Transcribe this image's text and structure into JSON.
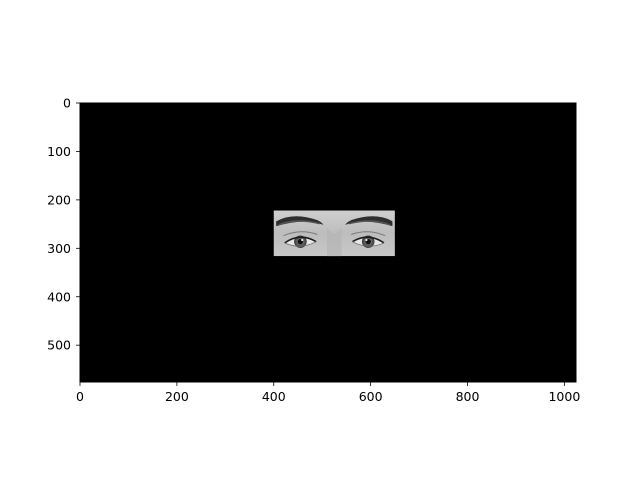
{
  "chart_data": {
    "type": "image",
    "title": "",
    "xlabel": "",
    "ylabel": "",
    "xlim": [
      0,
      1024
    ],
    "ylim": [
      576,
      0
    ],
    "x_ticks": [
      0,
      200,
      400,
      600,
      800,
      1000
    ],
    "y_ticks": [
      0,
      100,
      200,
      300,
      400,
      500
    ],
    "x_tick_labels": [
      "0",
      "200",
      "400",
      "600",
      "800",
      "1000"
    ],
    "y_tick_labels": [
      "0",
      "100",
      "200",
      "300",
      "400",
      "500"
    ],
    "background_color": "#000000",
    "grid": false,
    "inset": {
      "content": "grayscale-eyes-photo-icon",
      "x_range": [
        400,
        650
      ],
      "y_range": [
        222,
        316
      ]
    }
  }
}
